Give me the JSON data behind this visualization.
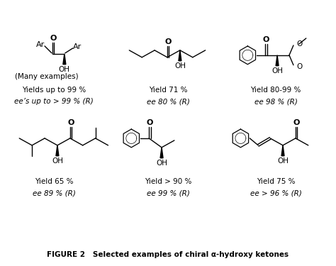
{
  "title": "FIGURE 2   Selected examples of chiral α-hydroxy ketones",
  "background": "#ffffff",
  "fs": 8.0,
  "fs_small": 7.5,
  "fs_caption": 7.5,
  "row0_yields": [
    "Yields up to 99 %",
    "Yield 71 %",
    "Yield 80-99 %"
  ],
  "row0_ee": [
    "ee’s up to > 99 % (R)",
    "ee 80 % (R)",
    "ee 98 % (R)"
  ],
  "row0_extra": "(Many examples)",
  "row1_yields": [
    "Yield 65 %",
    "Yield > 90 %",
    "Yield 75 %"
  ],
  "row1_ee": [
    "ee 89 % (R)",
    "ee 99 % (R)",
    "ee > 96 % (R)"
  ]
}
